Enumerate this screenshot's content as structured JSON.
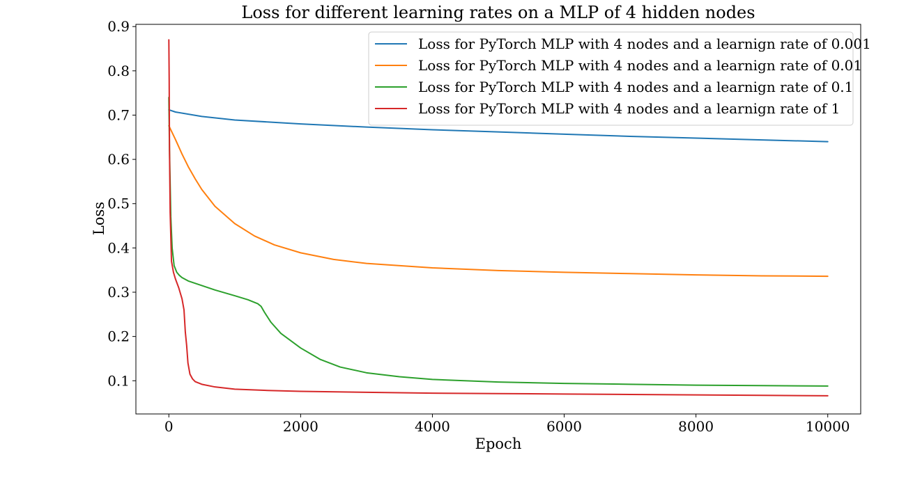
{
  "chart_data": {
    "type": "line",
    "title": "Loss for different learning rates on a MLP of 4 hidden nodes",
    "xlabel": "Epoch",
    "ylabel": "Loss",
    "xlim": [
      -500,
      10500
    ],
    "ylim": [
      0.025,
      0.905
    ],
    "xticks": [
      0,
      2000,
      4000,
      6000,
      8000,
      10000
    ],
    "xtick_labels": [
      "0",
      "2000",
      "4000",
      "6000",
      "8000",
      "10000"
    ],
    "yticks": [
      0.1,
      0.2,
      0.3,
      0.4,
      0.5,
      0.6,
      0.7,
      0.8,
      0.9
    ],
    "ytick_labels": [
      "0.1",
      "0.2",
      "0.3",
      "0.4",
      "0.5",
      "0.6",
      "0.7",
      "0.8",
      "0.9"
    ],
    "grid": false,
    "legend_position": "top-right",
    "series": [
      {
        "name": "Loss for PyTorch MLP with 4 nodes and a learnign rate of 0.001",
        "color": "#1f77b4",
        "x": [
          0,
          100,
          500,
          1000,
          2000,
          3000,
          4000,
          5000,
          6000,
          7000,
          8000,
          9000,
          10000
        ],
        "y": [
          0.712,
          0.707,
          0.697,
          0.689,
          0.68,
          0.673,
          0.667,
          0.662,
          0.657,
          0.652,
          0.648,
          0.644,
          0.64
        ]
      },
      {
        "name": "Loss for PyTorch MLP with 4 nodes and a learnign rate of 0.01",
        "color": "#ff7f0e",
        "x": [
          0,
          100,
          200,
          300,
          400,
          500,
          700,
          1000,
          1300,
          1600,
          2000,
          2500,
          3000,
          4000,
          5000,
          6000,
          7000,
          8000,
          9000,
          10000
        ],
        "y": [
          0.676,
          0.645,
          0.612,
          0.582,
          0.556,
          0.532,
          0.494,
          0.455,
          0.427,
          0.407,
          0.389,
          0.374,
          0.365,
          0.355,
          0.349,
          0.345,
          0.342,
          0.339,
          0.337,
          0.336
        ]
      },
      {
        "name": "Loss for PyTorch MLP with 4 nodes and a learnign rate of 0.1",
        "color": "#2ca02c",
        "x": [
          0,
          10,
          30,
          50,
          80,
          120,
          160,
          200,
          300,
          500,
          700,
          1000,
          1200,
          1350,
          1400,
          1450,
          1550,
          1700,
          2000,
          2300,
          2600,
          3000,
          3500,
          4000,
          5000,
          6000,
          7000,
          8000,
          9000,
          10000
        ],
        "y": [
          0.74,
          0.62,
          0.47,
          0.4,
          0.36,
          0.345,
          0.338,
          0.333,
          0.325,
          0.315,
          0.305,
          0.292,
          0.283,
          0.274,
          0.268,
          0.255,
          0.232,
          0.207,
          0.174,
          0.148,
          0.131,
          0.118,
          0.109,
          0.103,
          0.097,
          0.094,
          0.092,
          0.09,
          0.089,
          0.088
        ]
      },
      {
        "name": "Loss for PyTorch MLP with 4 nodes and a learnign rate of 1",
        "color": "#d62728",
        "x": [
          0,
          5,
          10,
          20,
          40,
          70,
          100,
          150,
          200,
          230,
          250,
          270,
          290,
          320,
          360,
          400,
          500,
          700,
          1000,
          1500,
          2000,
          3000,
          4000,
          5000,
          6000,
          7000,
          8000,
          9000,
          10000
        ],
        "y": [
          0.87,
          0.78,
          0.62,
          0.48,
          0.37,
          0.345,
          0.33,
          0.31,
          0.285,
          0.26,
          0.21,
          0.18,
          0.14,
          0.115,
          0.104,
          0.098,
          0.092,
          0.086,
          0.081,
          0.078,
          0.076,
          0.074,
          0.072,
          0.071,
          0.07,
          0.069,
          0.068,
          0.067,
          0.066
        ]
      }
    ]
  }
}
